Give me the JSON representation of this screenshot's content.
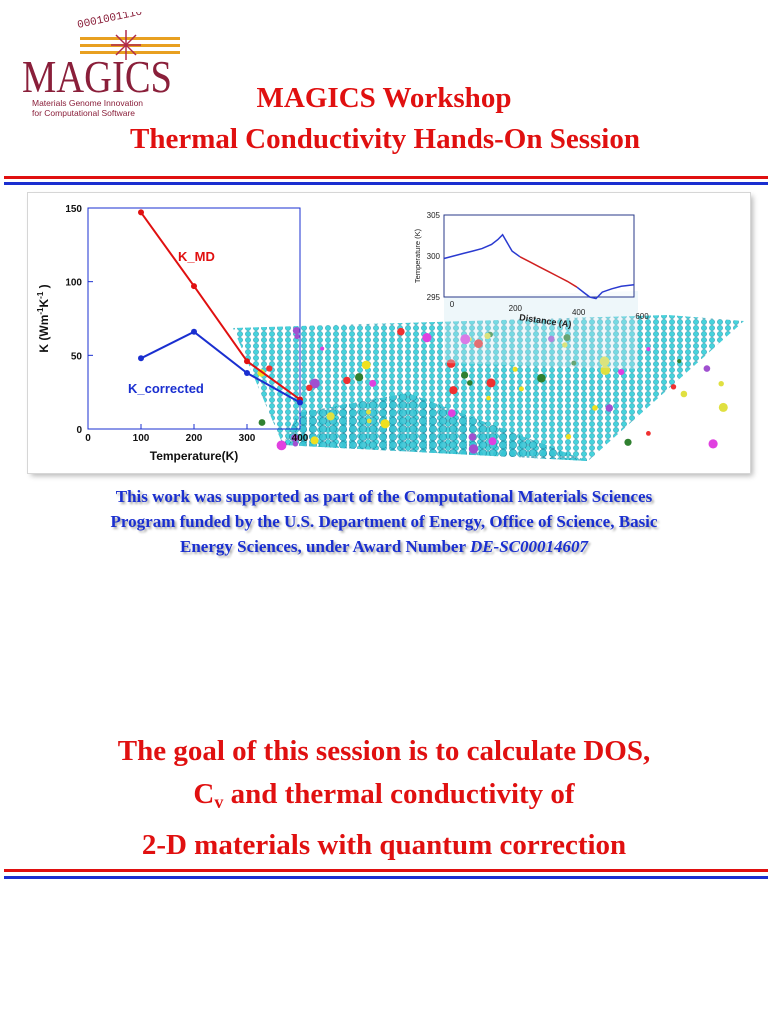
{
  "logo": {
    "name": "MAGICS",
    "binary": "0001001110",
    "tagline_line1": "Materials Genome Innovation",
    "tagline_line2": "for Computational Software"
  },
  "header": {
    "title_line1": "MAGICS Workshop",
    "title_line2": "Thermal Conductivity Hands-On Session"
  },
  "colors": {
    "accent_red": "#e01010",
    "accent_blue": "#1a2fd0"
  },
  "chart_data": [
    {
      "type": "line",
      "xlabel": "Temperature(K)",
      "ylabel": "K (Wm",
      "ylabel_sup1": "-1",
      "ylabel_mid": "K",
      "ylabel_sup2": "-1",
      "ylabel_end": ")",
      "xlim": [
        0,
        400
      ],
      "ylim": [
        0,
        150
      ],
      "xticks": [
        0,
        100,
        200,
        300,
        400
      ],
      "yticks": [
        0,
        50,
        100,
        150
      ],
      "x": [
        100,
        200,
        300,
        400
      ],
      "series": [
        {
          "name": "K_MD",
          "values": [
            147,
            97,
            46,
            20
          ],
          "color": "#e01010"
        },
        {
          "name": "K_corrected",
          "values": [
            48,
            66,
            38,
            18
          ],
          "color": "#1a2fd0"
        }
      ]
    },
    {
      "type": "line",
      "xlabel": "Distance (A)",
      "ylabel": "Temperature (K)",
      "xlim": [
        0,
        600
      ],
      "ylim": [
        295,
        305
      ],
      "xticks": [
        0,
        200,
        400,
        600
      ],
      "yticks": [
        295,
        300,
        305
      ],
      "x": [
        0,
        30,
        60,
        90,
        120,
        150,
        170,
        185,
        200,
        215,
        240,
        270,
        300,
        330,
        360,
        390,
        420,
        440,
        460,
        480,
        500,
        530,
        560,
        600
      ],
      "series": [
        {
          "values": [
            299.7,
            300.0,
            300.3,
            300.6,
            300.9,
            301.4,
            302.0,
            302.6,
            301.6,
            300.6,
            299.9,
            299.3,
            298.7,
            298.1,
            297.5,
            296.9,
            296.2,
            295.6,
            295.0,
            294.8,
            295.6,
            296.0,
            296.3,
            296.5
          ]
        }
      ]
    }
  ],
  "acknowledgement": {
    "line1": "This work was supported as part of the Computational Materials Sciences",
    "line2": "Program funded by the U.S. Department of Energy, Office of Science, Basic",
    "line3": "Energy Sciences, under Award Number ",
    "award": "DE-SC00014607"
  },
  "goal": {
    "line1": "The  goal of this session is to calculate DOS,",
    "line2_prefix": "C",
    "line2_sub": "v",
    "line2_rest": " and thermal conductivity of",
    "line3": "2-D materials with quantum correction"
  }
}
